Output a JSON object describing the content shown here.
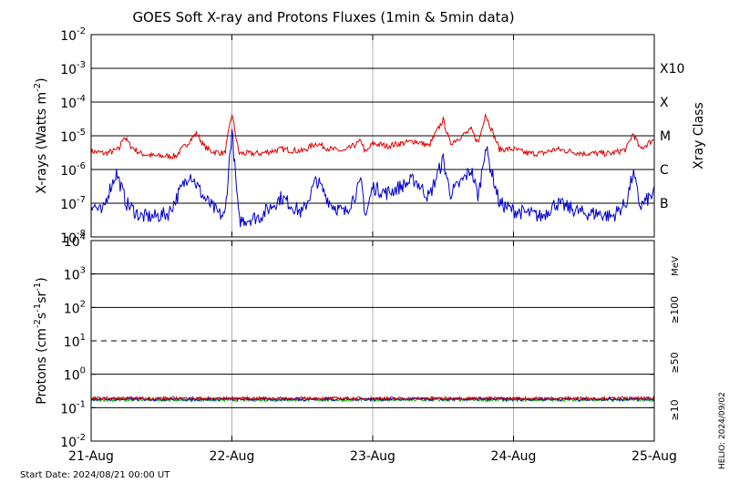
{
  "chart_data": [
    {
      "type": "line",
      "title": "GOES Soft X-ray and Protons Fluxes   (1min & 5min data)",
      "ylabel": "X-rays (Watts m^-2)",
      "ylabel_parts": {
        "base": "X-rays (Watts m",
        "exp": "-2",
        "close": ")"
      },
      "y_scale": "log",
      "ylim": [
        1e-08,
        0.01
      ],
      "y_tick_exponents": [
        -8,
        -7,
        -6,
        -5,
        -4,
        -3,
        -2
      ],
      "right_axis_label": "Xray Class",
      "class_labels": [
        {
          "text": "B",
          "value": 1e-07
        },
        {
          "text": "C",
          "value": 1e-06
        },
        {
          "text": "M",
          "value": 1e-05
        },
        {
          "text": "X",
          "value": 0.0001
        },
        {
          "text": "X10",
          "value": 0.001
        }
      ],
      "grid": true,
      "series": [
        {
          "color": "#dd0000",
          "x_days": [
            0,
            0.1,
            0.2,
            0.23,
            0.28,
            0.35,
            0.45,
            0.6,
            0.75,
            0.8,
            0.85,
            0.95,
            1.0,
            1.05,
            1.2,
            1.35,
            1.5,
            1.6,
            1.7,
            1.8,
            1.92,
            1.95,
            2.0,
            2.1,
            2.3,
            2.4,
            2.5,
            2.55,
            2.6,
            2.7,
            2.75,
            2.8,
            2.9,
            3.0,
            3.1,
            3.2,
            3.3,
            3.5,
            3.6,
            3.7,
            3.8,
            3.85,
            3.9,
            4.0
          ],
          "values": [
            3.5e-06,
            3e-06,
            4e-06,
            1e-05,
            5e-06,
            3e-06,
            2.5e-06,
            2.5e-06,
            1.2e-05,
            5e-06,
            3.5e-06,
            3e-06,
            4.5e-05,
            3e-06,
            3e-06,
            4e-06,
            3.5e-06,
            6e-06,
            4e-06,
            3.5e-06,
            7e-06,
            3e-06,
            6e-06,
            5e-06,
            7e-06,
            5e-06,
            3e-05,
            6e-06,
            8e-06,
            1.5e-05,
            6e-06,
            4.5e-05,
            4e-06,
            4e-06,
            3e-06,
            3e-06,
            4e-06,
            3e-06,
            3e-06,
            3e-06,
            4e-06,
            1.2e-05,
            4e-06,
            8e-06
          ]
        },
        {
          "color": "#0000cc",
          "x_days": [
            0,
            0.08,
            0.12,
            0.18,
            0.25,
            0.35,
            0.45,
            0.55,
            0.7,
            0.8,
            0.9,
            0.95,
            1.0,
            1.05,
            1.2,
            1.35,
            1.5,
            1.6,
            1.7,
            1.8,
            1.92,
            1.95,
            2.0,
            2.1,
            2.3,
            2.4,
            2.5,
            2.55,
            2.6,
            2.7,
            2.75,
            2.8,
            2.9,
            3.0,
            3.1,
            3.2,
            3.3,
            3.5,
            3.6,
            3.7,
            3.8,
            3.85,
            3.9,
            4.0
          ],
          "values": [
            1e-07,
            5e-08,
            2e-07,
            8e-07,
            1e-07,
            4e-08,
            4e-08,
            5e-08,
            8e-07,
            1.5e-07,
            5e-08,
            4e-08,
            1.5e-05,
            3e-08,
            4e-08,
            1.5e-07,
            5e-08,
            5e-07,
            1e-07,
            5e-08,
            4e-07,
            4e-08,
            3e-07,
            2e-07,
            5e-07,
            1.5e-07,
            2e-06,
            2e-07,
            3e-07,
            1e-06,
            1.5e-07,
            5e-06,
            1e-07,
            6e-08,
            5e-08,
            4e-08,
            1e-07,
            5e-08,
            5e-08,
            4e-08,
            1e-07,
            8e-07,
            8e-08,
            2e-07
          ]
        }
      ]
    },
    {
      "type": "line",
      "ylabel": "Protons (cm^-2 s^-1 sr^-1)",
      "ylabel_parts": {
        "a": "Protons (cm",
        "e1": "-2",
        "b": "s",
        "e2": "-1",
        "c": "sr",
        "e3": "-1",
        "d": ")"
      },
      "y_scale": "log",
      "ylim": [
        0.01,
        10000
      ],
      "y_tick_exponents": [
        -2,
        -1,
        0,
        1,
        2,
        3,
        4
      ],
      "threshold": {
        "value": 10,
        "style": "dashed"
      },
      "grid": true,
      "energy_unit": "MeV",
      "series": [
        {
          "name": "≥100",
          "color": "#00cc00",
          "value": 0.17
        },
        {
          "name": "≥50",
          "color": "#0000cc",
          "value": 0.18
        },
        {
          "name": "≥10",
          "color": "#cc0000",
          "value": 0.19
        }
      ]
    }
  ],
  "x_axis": {
    "tick_labels": [
      "21-Aug",
      "22-Aug",
      "23-Aug",
      "24-Aug",
      "25-Aug"
    ],
    "start_date": "Start Date: 2024/08/21 00:00 UT"
  },
  "side_note": "HELIO: 2024/09/02"
}
